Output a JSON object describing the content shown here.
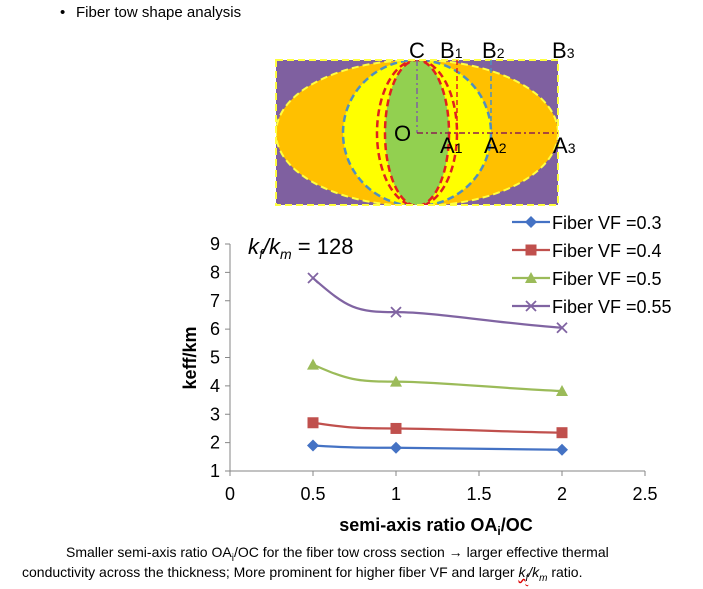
{
  "bullet": {
    "text": "Fiber tow shape analysis"
  },
  "diagram": {
    "labels": {
      "C": "C",
      "B1": "B",
      "B1_sub": "1",
      "B2": "B",
      "B2_sub": "2",
      "B3": "B",
      "B3_sub": "3",
      "O": "O",
      "A1": "A",
      "A1_sub": "1",
      "A2": "A",
      "A2_sub": "2",
      "A3": "A",
      "A3_sub": "3"
    },
    "colors": {
      "matrix": "#7F60A0",
      "outer": "#FFC000",
      "middle": "#FFFF00",
      "inner": "#92D050",
      "dash_red": "#E02020",
      "dash_blue": "#4F8FC0",
      "dash_yellow": "#FFFF40"
    }
  },
  "chart_data": {
    "type": "line",
    "annotation": {
      "k1": "k",
      "s1": "f",
      "k2": "/k",
      "s2": "m",
      "rest": " = 128"
    },
    "xlabel": "semi-axis ratio OA",
    "xlabel_sub": "i",
    "xlabel_tail": "/OC",
    "ylabel": "keff/km",
    "xlim": [
      0,
      2.5
    ],
    "ylim": [
      1,
      9
    ],
    "xticks": [
      "0",
      "0.5",
      "1",
      "1.5",
      "2",
      "2.5"
    ],
    "yticks": [
      "1",
      "2",
      "3",
      "4",
      "5",
      "6",
      "7",
      "8",
      "9"
    ],
    "x": [
      0.5,
      1,
      2
    ],
    "series": [
      {
        "name": "Fiber VF =0.3",
        "values": [
          1.9,
          1.82,
          1.75
        ],
        "color": "#4472C4",
        "marker": "diamond"
      },
      {
        "name": "Fiber VF =0.4",
        "values": [
          2.7,
          2.5,
          2.35
        ],
        "color": "#C0504D",
        "marker": "square"
      },
      {
        "name": "Fiber VF =0.5",
        "values": [
          4.75,
          4.15,
          3.82
        ],
        "color": "#9BBB59",
        "marker": "triangle"
      },
      {
        "name": "Fiber VF =0.55",
        "values": [
          7.8,
          6.6,
          6.05
        ],
        "color": "#8064A2",
        "marker": "x"
      }
    ],
    "legend_position": "top-right",
    "grid": false
  },
  "caption": {
    "line1_a": "Smaller semi-axis ratio OA",
    "line1_sub": "i",
    "line1_b": "/OC for the fiber tow cross section → larger effective thermal",
    "line2_a": "conductivity across the thickness; More prominent for higher fiber VF and larger ",
    "line2_k1": "k",
    "line2_s1": "f",
    "line2_k2": "/k",
    "line2_s2": "m",
    "line2_b": " ratio."
  }
}
